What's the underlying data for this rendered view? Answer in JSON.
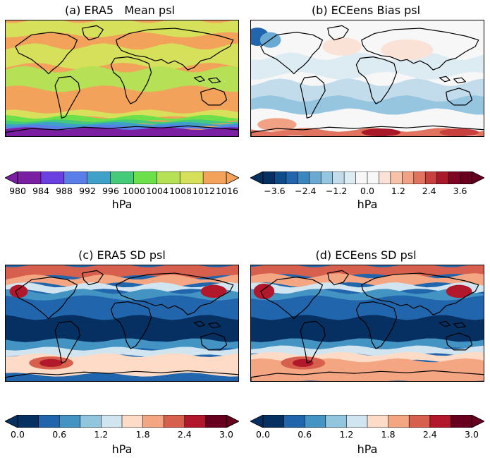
{
  "panels": [
    {
      "id": "a",
      "title": "(a) ERA5   Mean psl",
      "colorbar": {
        "colors": [
          "#7a1fa2",
          "#6b40e0",
          "#5a7ee8",
          "#3fa0c8",
          "#45c97a",
          "#6ce04a",
          "#b6e055",
          "#d7e05a",
          "#f2a25a"
        ],
        "extend_left": true,
        "extend_right": true,
        "ticks": [
          "980",
          "984",
          "988",
          "992",
          "996",
          "1000",
          "1004",
          "1008",
          "1012",
          "1016"
        ],
        "unit": "hPa"
      },
      "map_style": "mean"
    },
    {
      "id": "b",
      "title": "(b) ECEens Bias psl",
      "colorbar": {
        "colors": [
          "#053061",
          "#0f4d8a",
          "#2166ac",
          "#3a87c0",
          "#6aaad2",
          "#95c5df",
          "#c2dceb",
          "#ddebf2",
          "#f7f7f7",
          "#f7f7f7",
          "#fbe2d6",
          "#f7c3a8",
          "#f2a284",
          "#e0745e",
          "#c8413e",
          "#a81a2a",
          "#7f0525",
          "#67001f"
        ],
        "extend_left": true,
        "extend_right": true,
        "ticks": [
          "−3.6",
          "−2.4",
          "−1.2",
          "0.0",
          "1.2",
          "2.4",
          "3.6"
        ],
        "unit": "hPa"
      },
      "map_style": "bias"
    },
    {
      "id": "c",
      "title": "(c) ERA5 SD psl",
      "colorbar": {
        "colors": [
          "#053061",
          "#2166ac",
          "#4393c3",
          "#92c5de",
          "#d1e5f0",
          "#fddbc7",
          "#f4a582",
          "#d6604d",
          "#b2182b",
          "#67001f"
        ],
        "extend_left": true,
        "extend_right": true,
        "ticks": [
          "0.0",
          "0.6",
          "1.2",
          "1.8",
          "2.4",
          "3.0"
        ],
        "unit": "hPa"
      },
      "map_style": "sd"
    },
    {
      "id": "d",
      "title": "(d) ECEens SD psl",
      "colorbar": {
        "colors": [
          "#053061",
          "#2166ac",
          "#4393c3",
          "#92c5de",
          "#d1e5f0",
          "#fddbc7",
          "#f4a582",
          "#d6604d",
          "#b2182b",
          "#67001f"
        ],
        "extend_left": true,
        "extend_right": true,
        "ticks": [
          "0.0",
          "0.6",
          "1.2",
          "1.8",
          "2.4",
          "3.0"
        ],
        "unit": "hPa"
      },
      "map_style": "sd2"
    }
  ]
}
